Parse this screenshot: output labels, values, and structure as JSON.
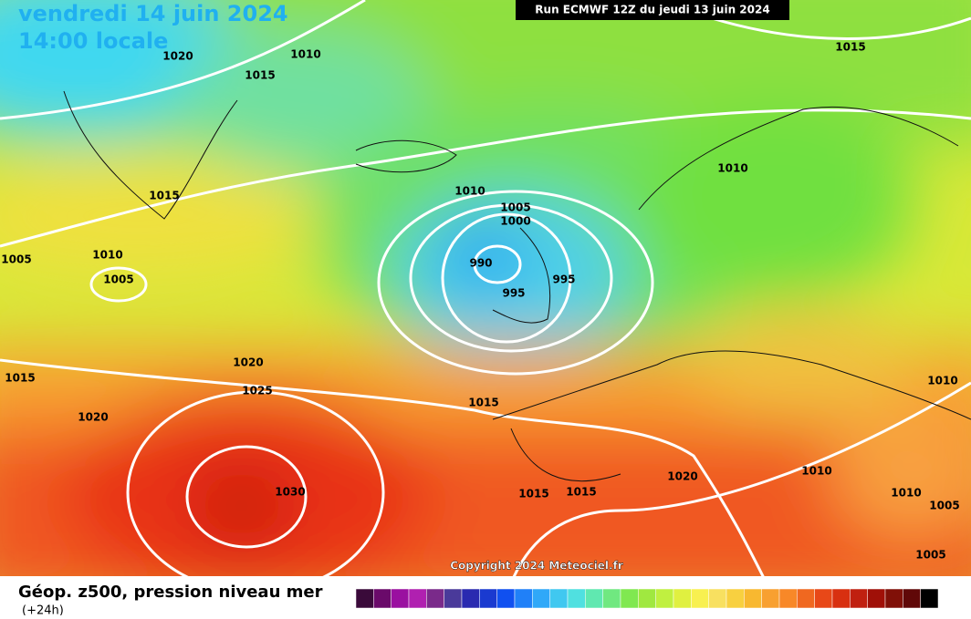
{
  "header": {
    "date": "vendredi 14 juin 2024",
    "time": "14:00 locale",
    "run": "Run ECMWF 12Z du jeudi 13 juin 2024"
  },
  "isobar_labels": [
    "1020",
    "1010",
    "1015",
    "1015",
    "1015",
    "1010",
    "1005",
    "1000",
    "1010",
    "1005",
    "1010",
    "1005",
    "990",
    "995",
    "995",
    "1020",
    "1025",
    "1015",
    "1020",
    "1010",
    "1015",
    "1030",
    "1020",
    "1010",
    "1015",
    "1015",
    "1010",
    "1005",
    "1005"
  ],
  "copyright": "Copyright 2024 Meteociel.fr",
  "legend": {
    "caption": "Géop. z500, pression niveau mer",
    "lead": "(+24h)"
  }
}
